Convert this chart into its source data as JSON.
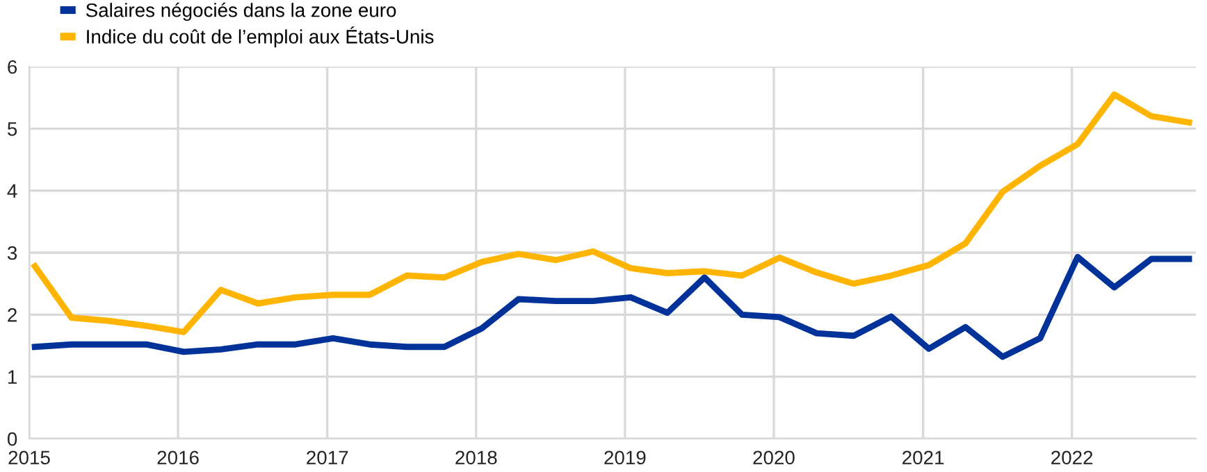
{
  "chart_data": {
    "type": "line",
    "x": [
      "2015-01-15",
      "2015-04-15",
      "2015-07-15",
      "2015-10-15",
      "2016-01-15",
      "2016-04-15",
      "2016-07-15",
      "2016-10-15",
      "2017-01-15",
      "2017-04-15",
      "2017-07-15",
      "2017-10-15",
      "2018-01-15",
      "2018-04-15",
      "2018-07-15",
      "2018-10-15",
      "2019-01-15",
      "2019-04-15",
      "2019-07-15",
      "2019-10-15",
      "2020-01-15",
      "2020-04-15",
      "2020-07-15",
      "2020-10-15",
      "2021-01-15",
      "2021-04-15",
      "2021-07-15",
      "2021-10-15",
      "2022-01-15",
      "2022-04-15",
      "2022-07-15",
      "2022-10-15"
    ],
    "series": [
      {
        "name": "Salaires négociés dans la zone euro",
        "color": "#003299",
        "values": [
          1.48,
          1.52,
          1.52,
          1.52,
          1.4,
          1.44,
          1.52,
          1.52,
          1.62,
          1.52,
          1.48,
          1.48,
          1.78,
          2.25,
          2.22,
          2.22,
          2.28,
          2.03,
          2.6,
          2.0,
          1.96,
          1.7,
          1.66,
          1.97,
          1.45,
          1.8,
          1.32,
          1.62,
          2.93,
          2.44,
          2.9,
          2.9
        ]
      },
      {
        "name": "Indice du coût de l’emploi aux États-Unis",
        "color": "#ffb400",
        "values": [
          2.78,
          1.95,
          1.9,
          1.82,
          1.72,
          2.4,
          2.18,
          2.28,
          2.32,
          2.32,
          2.63,
          2.6,
          2.85,
          2.98,
          2.88,
          3.02,
          2.75,
          2.67,
          2.7,
          2.63,
          2.92,
          2.68,
          2.5,
          2.63,
          2.8,
          3.15,
          3.98,
          4.4,
          4.75,
          5.55,
          5.2,
          5.1
        ]
      }
    ],
    "xlim": [
      "2015-01-01",
      "2022-11-01"
    ],
    "xticks": [
      {
        "value": "2015-01-01",
        "label": "2015"
      },
      {
        "value": "2016-01-01",
        "label": "2016"
      },
      {
        "value": "2017-01-01",
        "label": "2017"
      },
      {
        "value": "2018-01-01",
        "label": "2018"
      },
      {
        "value": "2019-01-01",
        "label": "2019"
      },
      {
        "value": "2020-01-01",
        "label": "2020"
      },
      {
        "value": "2021-01-01",
        "label": "2021"
      },
      {
        "value": "2022-01-01",
        "label": "2022"
      }
    ],
    "ylim": [
      0,
      6
    ],
    "yticks": [
      0,
      1,
      2,
      3,
      4,
      5,
      6
    ],
    "grid": true,
    "legend": "top left",
    "marker": "none",
    "line_style": "solid"
  }
}
